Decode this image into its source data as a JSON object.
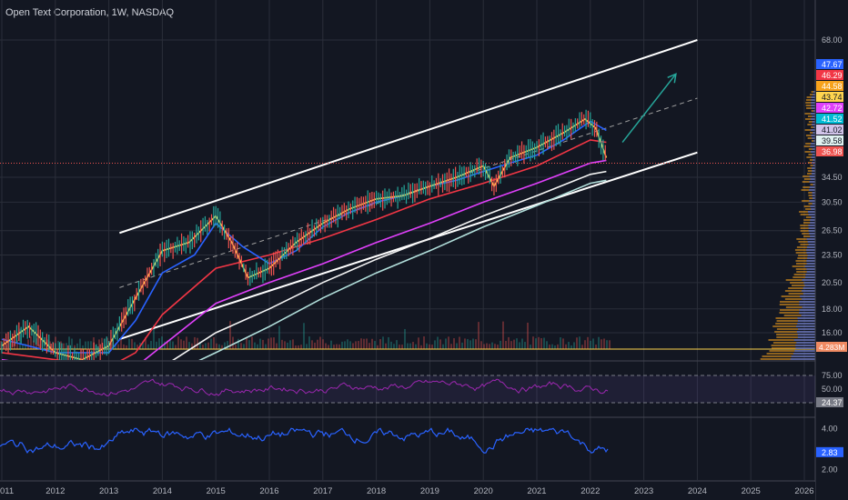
{
  "header": {
    "title": "Open Text Corporation, 1W, NASDAQ"
  },
  "chart_data": {
    "type": "line",
    "price_scale": {
      "ticks": [
        "68.00",
        "34.50",
        "30.50",
        "26.50",
        "23.50",
        "20.50",
        "18.00",
        "16.00"
      ],
      "range": [
        15,
        82
      ]
    },
    "price_badges": [
      {
        "label": "47.67",
        "value": 47.67,
        "color": "#2962ff"
      },
      {
        "label": "46.29",
        "value": 46.29,
        "color": "#f23645"
      },
      {
        "label": "44.58",
        "value": 44.58,
        "color": "#f7a21b"
      },
      {
        "label": "43.74",
        "value": 43.74,
        "color": "#ffd54f"
      },
      {
        "label": "42.72",
        "value": 42.72,
        "color": "#e040fb"
      },
      {
        "label": "41.52",
        "value": 41.52,
        "color": "#00bcd4"
      },
      {
        "label": "41.02",
        "value": 41.02,
        "color": "#d1c4e9"
      },
      {
        "label": "39.58",
        "value": 39.58,
        "color": "#e0f2f1"
      },
      {
        "label": "36.98",
        "value": 36.98,
        "color": "#ef5350"
      }
    ],
    "volume_badge": {
      "label": "4.283M",
      "color": "#ef8a62"
    },
    "rsi": {
      "ticks": [
        "75.00",
        "50.00"
      ],
      "current": "24.37",
      "range": [
        0,
        100
      ],
      "color": "#9c27b0"
    },
    "oscillator": {
      "ticks": [
        "4.00",
        "2.00"
      ],
      "current": "2.83",
      "range": [
        1.5,
        4.5
      ],
      "color": "#2962ff"
    },
    "time_axis": [
      "011",
      "2012",
      "2013",
      "2014",
      "2015",
      "2016",
      "2017",
      "2018",
      "2019",
      "2020",
      "2021",
      "2022",
      "2023",
      "2024",
      "2025",
      "2026"
    ],
    "price_series": [
      {
        "name": "",
        "color": "#ffd54f",
        "dates": [
          2011.0,
          2011.5,
          2012.0,
          2012.5,
          2013.0,
          2013.5,
          2014.0,
          2014.5,
          2015.0,
          2015.3,
          2015.6,
          2016.0,
          2016.5,
          2017.0,
          2017.5,
          2018.0,
          2018.5,
          2019.0,
          2019.5,
          2020.0,
          2020.2,
          2020.5,
          2021.0,
          2021.5,
          2021.9,
          2022.1,
          2022.3
        ],
        "values": [
          15.0,
          16.5,
          14.5,
          14.0,
          15.0,
          19.0,
          24.0,
          25.0,
          28.5,
          25.0,
          21.0,
          22.0,
          25.0,
          27.5,
          29.5,
          31.0,
          31.5,
          33.0,
          34.5,
          36.5,
          33.0,
          38.0,
          40.0,
          43.0,
          46.0,
          44.0,
          38.0
        ]
      },
      {
        "name": "",
        "color": "#2962ff",
        "dates": [
          2011.0,
          2012.0,
          2013.0,
          2013.5,
          2014.0,
          2014.6,
          2015.0,
          2015.5,
          2016.0,
          2016.5,
          2017.0,
          2017.5,
          2018.0,
          2018.5,
          2019.0,
          2019.5,
          2020.0,
          2020.5,
          2021.0,
          2021.5,
          2022.0,
          2022.3
        ],
        "values": [
          15.5,
          14.5,
          14.5,
          17.0,
          21.5,
          23.5,
          27.5,
          24.5,
          22.5,
          24.0,
          27.0,
          29.0,
          30.5,
          31.5,
          33.0,
          34.0,
          35.5,
          37.0,
          38.5,
          41.5,
          45.5,
          43.5
        ]
      },
      {
        "name": "",
        "color": "#f23645",
        "dates": [
          2011.0,
          2012.0,
          2013.0,
          2013.5,
          2014.0,
          2015.0,
          2016.0,
          2017.0,
          2018.0,
          2019.0,
          2020.0,
          2021.0,
          2022.0,
          2022.3
        ],
        "values": [
          14.5,
          14.0,
          13.5,
          14.5,
          17.5,
          22.0,
          23.5,
          25.5,
          28.0,
          31.0,
          33.5,
          36.5,
          41.5,
          41.0
        ]
      },
      {
        "name": "",
        "color": "#e040fb",
        "dates": [
          2011.0,
          2013.0,
          2013.5,
          2014.0,
          2015.0,
          2016.0,
          2017.0,
          2018.0,
          2019.0,
          2020.0,
          2021.0,
          2022.0,
          2022.3
        ],
        "values": [
          14.0,
          13.0,
          13.5,
          15.0,
          18.5,
          20.5,
          22.5,
          25.0,
          27.5,
          30.5,
          33.5,
          37.0,
          37.5
        ]
      },
      {
        "name": "",
        "color": "#f5f5f5",
        "dates": [
          2011.0,
          2013.0,
          2014.0,
          2015.0,
          2016.0,
          2017.0,
          2018.0,
          2019.0,
          2020.0,
          2021.0,
          2022.0,
          2022.3
        ],
        "values": [
          13.5,
          12.5,
          13.5,
          16.0,
          18.0,
          20.5,
          23.0,
          25.5,
          28.5,
          31.5,
          35.0,
          35.5
        ]
      },
      {
        "name": "",
        "color": "#b2dfdb",
        "dates": [
          2011.0,
          2013.0,
          2014.0,
          2015.0,
          2016.0,
          2017.0,
          2018.0,
          2019.0,
          2020.0,
          2021.0,
          2022.0,
          2022.3
        ],
        "values": [
          13.0,
          12.0,
          12.8,
          14.5,
          16.5,
          19.0,
          21.5,
          24.0,
          27.0,
          30.0,
          33.5,
          34.0
        ]
      }
    ],
    "channel_lines": [
      {
        "name": "",
        "style": "solid",
        "from": [
          2013.2,
          26.2
        ],
        "to": [
          2024.0,
          68.0
        ]
      },
      {
        "name": "",
        "style": "solid",
        "from": [
          2013.2,
          15.5
        ],
        "to": [
          2024.0,
          39.0
        ]
      },
      {
        "name": "",
        "style": "dashed",
        "from": [
          2013.2,
          20.0
        ],
        "to": [
          2024.0,
          51.0
        ]
      }
    ],
    "arrow": {
      "from": [
        2022.6,
        41.0
      ],
      "to": [
        2023.6,
        57.5
      ],
      "color": "#26a69a"
    },
    "current_price_line": 36.98
  }
}
